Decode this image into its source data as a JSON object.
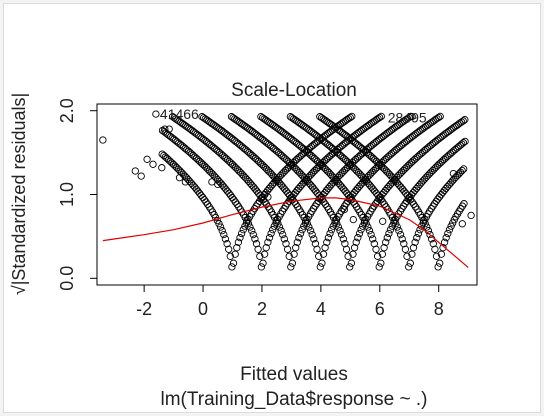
{
  "chart_data": {
    "type": "scatter",
    "title": "Scale-Location",
    "xlabel": "Fitted values",
    "ylabel": "√|Standardized residuals|",
    "subtitle": "lm(Training_Data$response ~ .)",
    "xlim": [
      -3.6,
      9.3
    ],
    "ylim": [
      -0.08,
      2.08
    ],
    "x_ticks": [
      -2,
      0,
      2,
      4,
      6,
      8
    ],
    "x_tick_labels": [
      "-2",
      "0",
      "2",
      "4",
      "6",
      "8"
    ],
    "y_ticks": [
      0.0,
      1.0,
      2.0
    ],
    "y_tick_labels": [
      "0.0",
      "1.0",
      "2.0"
    ],
    "grid": false,
    "point_color": "#000000",
    "smooth_color": "#e00000",
    "curve_centers": [
      1,
      2,
      3,
      4,
      5,
      6,
      7,
      8
    ],
    "outlier_points": [
      {
        "x": -3.4,
        "y": 1.65
      },
      {
        "x": -2.3,
        "y": 1.28
      },
      {
        "x": -2.1,
        "y": 1.22
      },
      {
        "x": -1.9,
        "y": 1.42
      },
      {
        "x": -1.7,
        "y": 1.36
      },
      {
        "x": -1.4,
        "y": 1.32
      },
      {
        "x": -1.6,
        "y": 1.96
      },
      {
        "x": -1.3,
        "y": 1.78
      },
      {
        "x": -1.15,
        "y": 1.78
      },
      {
        "x": -0.8,
        "y": 1.2
      },
      {
        "x": -0.6,
        "y": 1.15
      },
      {
        "x": 0.3,
        "y": 1.15
      },
      {
        "x": 0.5,
        "y": 1.12
      },
      {
        "x": 2.2,
        "y": 0.97
      },
      {
        "x": 2.1,
        "y": 1.0
      },
      {
        "x": 4.8,
        "y": 0.82
      },
      {
        "x": 5.1,
        "y": 0.7
      },
      {
        "x": 6.1,
        "y": 0.68
      },
      {
        "x": 7.1,
        "y": 1.93
      },
      {
        "x": 8.8,
        "y": 0.65
      },
      {
        "x": 9.1,
        "y": 0.75
      },
      {
        "x": 8.5,
        "y": 1.25
      }
    ],
    "labeled_points": [
      {
        "label": "41466",
        "x": -1.6,
        "y": 1.96
      },
      {
        "label": "28495",
        "x": 7.0,
        "y": 1.92
      }
    ],
    "smooth_line": {
      "x": [
        -3.4,
        -2,
        -1,
        0,
        1,
        2,
        3,
        4,
        4.5,
        5,
        6,
        7,
        7.5,
        8,
        8.5,
        9.0
      ],
      "y": [
        0.45,
        0.52,
        0.58,
        0.66,
        0.76,
        0.85,
        0.92,
        0.96,
        0.96,
        0.94,
        0.86,
        0.7,
        0.58,
        0.43,
        0.28,
        0.13
      ]
    }
  }
}
